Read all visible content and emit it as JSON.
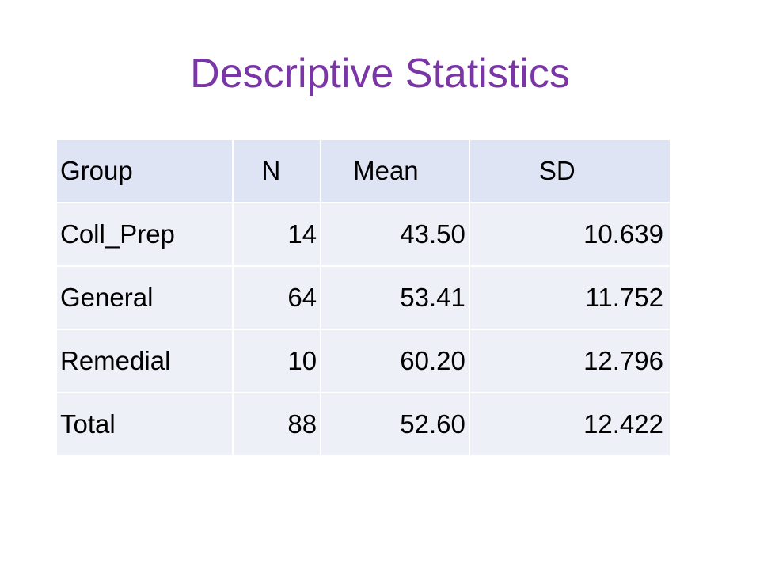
{
  "slide": {
    "title": "Descriptive Statistics"
  },
  "table": {
    "headers": {
      "group": "Group",
      "n": "N",
      "mean": "Mean",
      "sd": "SD"
    },
    "rows": [
      {
        "group": "Coll_Prep",
        "n": "14",
        "mean": "43.50",
        "sd": "10.639"
      },
      {
        "group": "General",
        "n": "64",
        "mean": "53.41",
        "sd": "11.752"
      },
      {
        "group": "Remedial",
        "n": "10",
        "mean": "60.20",
        "sd": "12.796"
      },
      {
        "group": "Total",
        "n": "88",
        "mean": "52.60",
        "sd": "12.422"
      }
    ]
  },
  "colors": {
    "title": "#7a35a6",
    "header_background": "#dfe4f4",
    "row_background": "#eef0f8"
  }
}
